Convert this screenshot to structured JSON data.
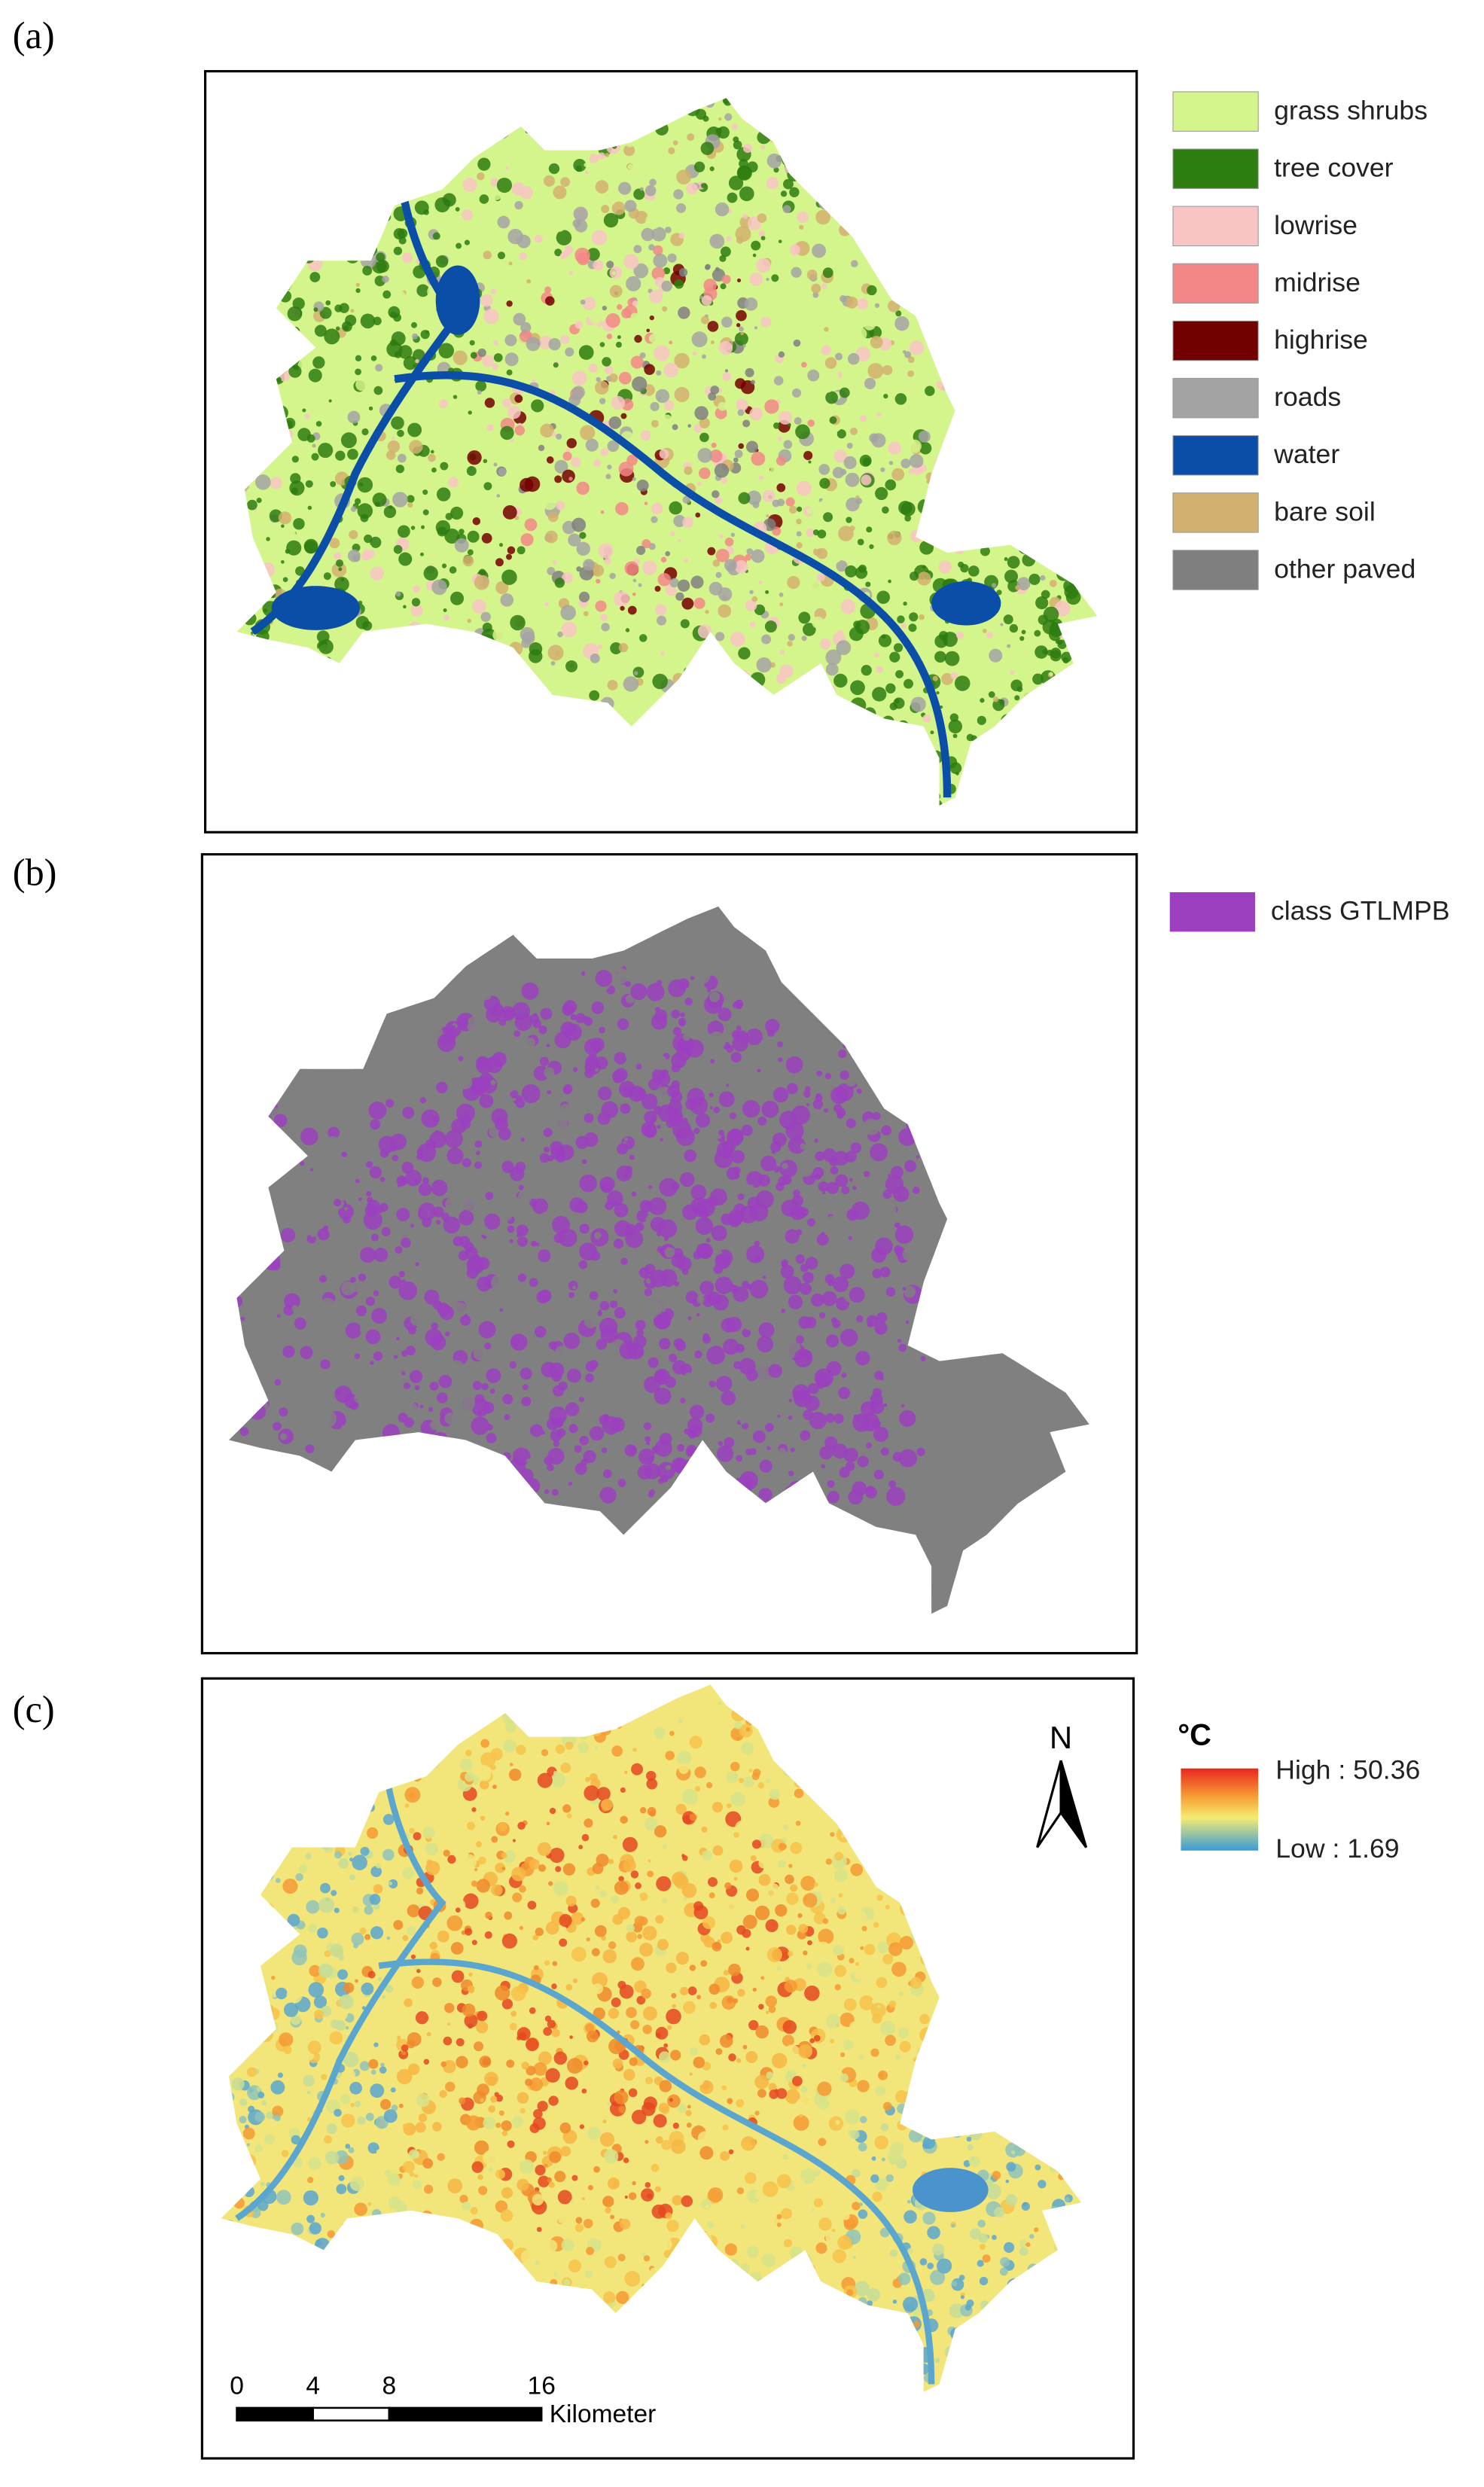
{
  "panels": [
    {
      "label": "(a)",
      "legend": [
        {
          "name": "grass shrubs",
          "color": "#d4f58c"
        },
        {
          "name": "tree cover",
          "color": "#2e7d10"
        },
        {
          "name": "lowrise",
          "color": "#f9c4c4"
        },
        {
          "name": "midrise",
          "color": "#f28787"
        },
        {
          "name": "highrise",
          "color": "#730000"
        },
        {
          "name": "roads",
          "color": "#a3a3a3"
        },
        {
          "name": "water",
          "color": "#0b4ea8"
        },
        {
          "name": "bare soil",
          "color": "#d2b06e"
        },
        {
          "name": "other paved",
          "color": "#7f7f7f"
        }
      ]
    },
    {
      "label": "(b)",
      "legend": [
        {
          "name": "class GTLMPB",
          "color": "#9b3fbf"
        }
      ]
    },
    {
      "label": "(c)",
      "unit": "°C",
      "high": "High : 50.36",
      "low": "Low : 1.69",
      "north": "N",
      "scale_bar": {
        "ticks": [
          0,
          4,
          8,
          16
        ],
        "unit": "Kilometer"
      }
    }
  ]
}
